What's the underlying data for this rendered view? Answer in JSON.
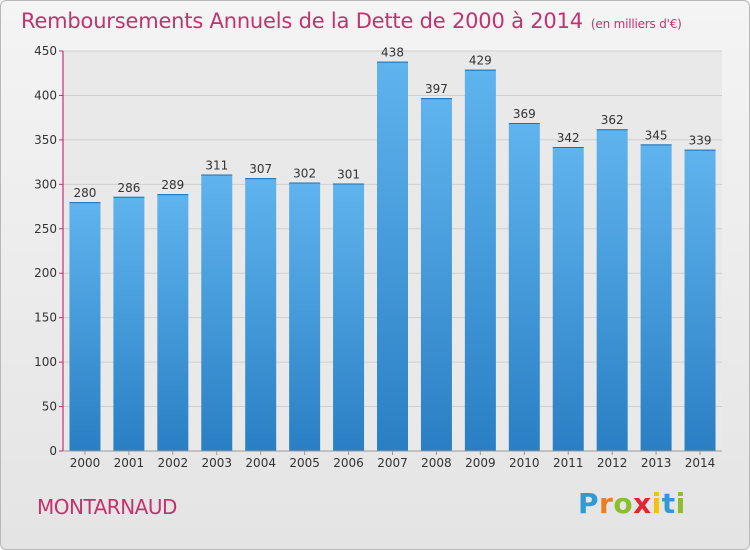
{
  "chart_data": {
    "type": "bar",
    "title": "Remboursements Annuels de la Dette de 2000 à 2014",
    "subtitle": "(en milliers d'€)",
    "categories": [
      "2000",
      "2001",
      "2002",
      "2003",
      "2004",
      "2005",
      "2006",
      "2007",
      "2008",
      "2009",
      "2010",
      "2011",
      "2012",
      "2013",
      "2014"
    ],
    "values": [
      280,
      286,
      289,
      311,
      307,
      302,
      301,
      438,
      397,
      429,
      369,
      342,
      362,
      345,
      339
    ],
    "ylim": [
      0,
      450
    ],
    "yticks": [
      0,
      50,
      100,
      150,
      200,
      250,
      300,
      350,
      400,
      450
    ],
    "grid": true,
    "bar_color": "#4a9fe0"
  },
  "footer": {
    "town": "MONTARNAUD",
    "logo": {
      "letters": [
        "P",
        "r",
        "o",
        "x",
        "i",
        "t",
        "i"
      ],
      "colors": [
        "#2f9ad6",
        "#ee7d22",
        "#8cbd2a",
        "#e0262e",
        "#f3c200",
        "#2f9ad6",
        "#8cbd2a"
      ]
    }
  },
  "colors": {
    "title": "#c2336e",
    "axis_pink": "#c2336e",
    "grid": "#cfcfcf"
  }
}
